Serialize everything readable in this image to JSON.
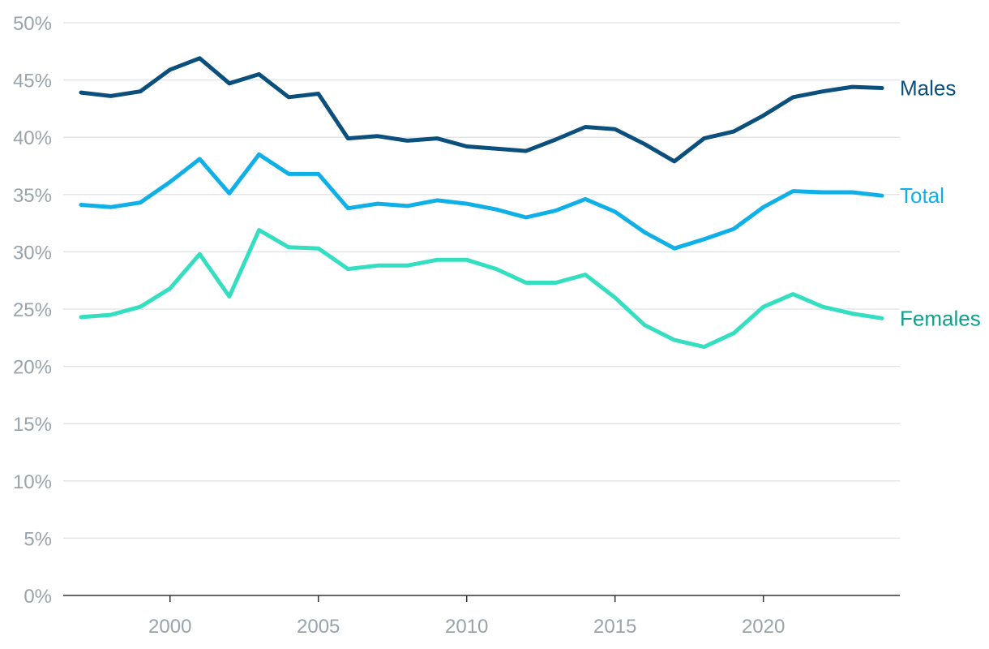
{
  "chart_data": {
    "type": "line",
    "title": "",
    "xlabel": "",
    "ylabel": "",
    "x": [
      1997,
      1998,
      1999,
      2000,
      2001,
      2002,
      2003,
      2004,
      2005,
      2006,
      2007,
      2008,
      2009,
      2010,
      2011,
      2012,
      2013,
      2014,
      2015,
      2016,
      2017,
      2018,
      2019,
      2020,
      2021,
      2022,
      2023,
      2024
    ],
    "xlim": [
      1996.4,
      2024.6
    ],
    "ylim": [
      0,
      50
    ],
    "y_ticks": [
      0,
      5,
      10,
      15,
      20,
      25,
      30,
      35,
      40,
      45,
      50
    ],
    "y_tick_labels": [
      "0%",
      "5%",
      "10%",
      "15%",
      "20%",
      "25%",
      "30%",
      "35%",
      "40%",
      "45%",
      "50%"
    ],
    "x_ticks": [
      2000,
      2005,
      2010,
      2015,
      2020
    ],
    "x_tick_labels": [
      "2000",
      "2005",
      "2010",
      "2015",
      "2020"
    ],
    "grid": "horizontal",
    "legend": "labels at line ends (right)",
    "series": [
      {
        "name": "Males",
        "color": "#0b4f7c",
        "values": [
          43.9,
          43.6,
          44.0,
          45.9,
          46.9,
          44.7,
          45.5,
          43.5,
          43.8,
          39.9,
          40.1,
          39.7,
          39.9,
          39.2,
          39.0,
          38.8,
          39.8,
          40.9,
          40.7,
          39.4,
          37.9,
          39.9,
          40.5,
          41.9,
          43.5,
          44.0,
          44.4,
          44.3
        ]
      },
      {
        "name": "Total",
        "color": "#0fb0e8",
        "values": [
          34.1,
          33.9,
          34.3,
          36.1,
          38.1,
          35.1,
          38.5,
          36.8,
          36.8,
          33.8,
          34.2,
          34.0,
          34.5,
          34.2,
          33.7,
          33.0,
          33.6,
          34.6,
          33.5,
          31.7,
          30.3,
          31.1,
          32.0,
          33.9,
          35.3,
          35.2,
          35.2,
          34.9
        ]
      },
      {
        "name": "Females",
        "color": "#33dfc0",
        "label_color": "#129e8a",
        "values": [
          24.3,
          24.5,
          25.2,
          26.8,
          29.8,
          26.1,
          31.9,
          30.4,
          30.3,
          28.5,
          28.8,
          28.8,
          29.3,
          29.3,
          28.5,
          27.3,
          27.3,
          28.0,
          26.0,
          23.6,
          22.3,
          21.7,
          22.9,
          25.2,
          26.3,
          25.2,
          24.6,
          24.2
        ]
      }
    ]
  }
}
